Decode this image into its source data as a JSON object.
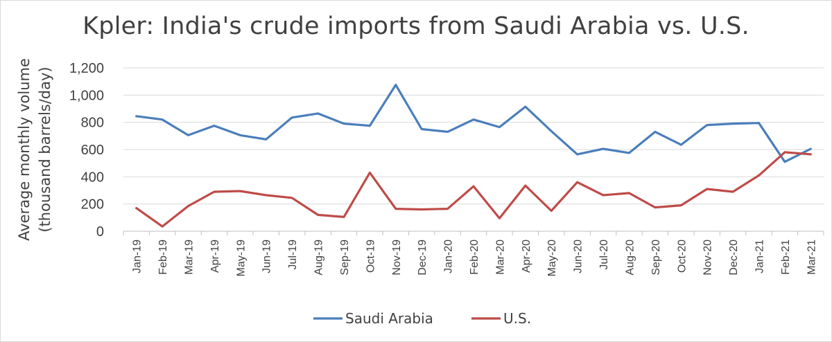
{
  "chart_data": {
    "type": "line",
    "title": "Kpler: India's crude imports from Saudi Arabia vs. U.S.",
    "ylabel_lines": [
      "Average monthly volume",
      "(thousand barrels/day)"
    ],
    "xlabel": "",
    "ylim": [
      0,
      1200
    ],
    "yticks": [
      0,
      200,
      400,
      600,
      800,
      1000,
      1200
    ],
    "ytick_labels": [
      "0",
      "200",
      "400",
      "600",
      "800",
      "1,000",
      "1,200"
    ],
    "grid": true,
    "legend_position": "bottom",
    "categories": [
      "Jan-19",
      "Feb-19",
      "Mar-19",
      "Apr-19",
      "May-19",
      "Jun-19",
      "Jul-19",
      "Aug-19",
      "Sep-19",
      "Oct-19",
      "Nov-19",
      "Dec-19",
      "Jan-20",
      "Feb-20",
      "Mar-20",
      "Apr-20",
      "May-20",
      "Jun-20",
      "Jul-20",
      "Aug-20",
      "Sep-20",
      "Oct-20",
      "Nov-20",
      "Dec-20",
      "Jan-21",
      "Feb-21",
      "Mar-21"
    ],
    "series": [
      {
        "name": "Saudi Arabia",
        "color": "#4a7ebb",
        "values": [
          845,
          820,
          705,
          775,
          705,
          675,
          835,
          865,
          790,
          775,
          1075,
          750,
          730,
          820,
          765,
          915,
          735,
          565,
          605,
          575,
          730,
          635,
          780,
          790,
          795,
          510,
          605
        ]
      },
      {
        "name": "U.S.",
        "color": "#be4b48",
        "values": [
          170,
          35,
          185,
          290,
          295,
          265,
          245,
          120,
          105,
          430,
          165,
          160,
          165,
          330,
          95,
          335,
          150,
          360,
          265,
          280,
          175,
          190,
          310,
          290,
          410,
          580,
          565
        ]
      }
    ]
  }
}
